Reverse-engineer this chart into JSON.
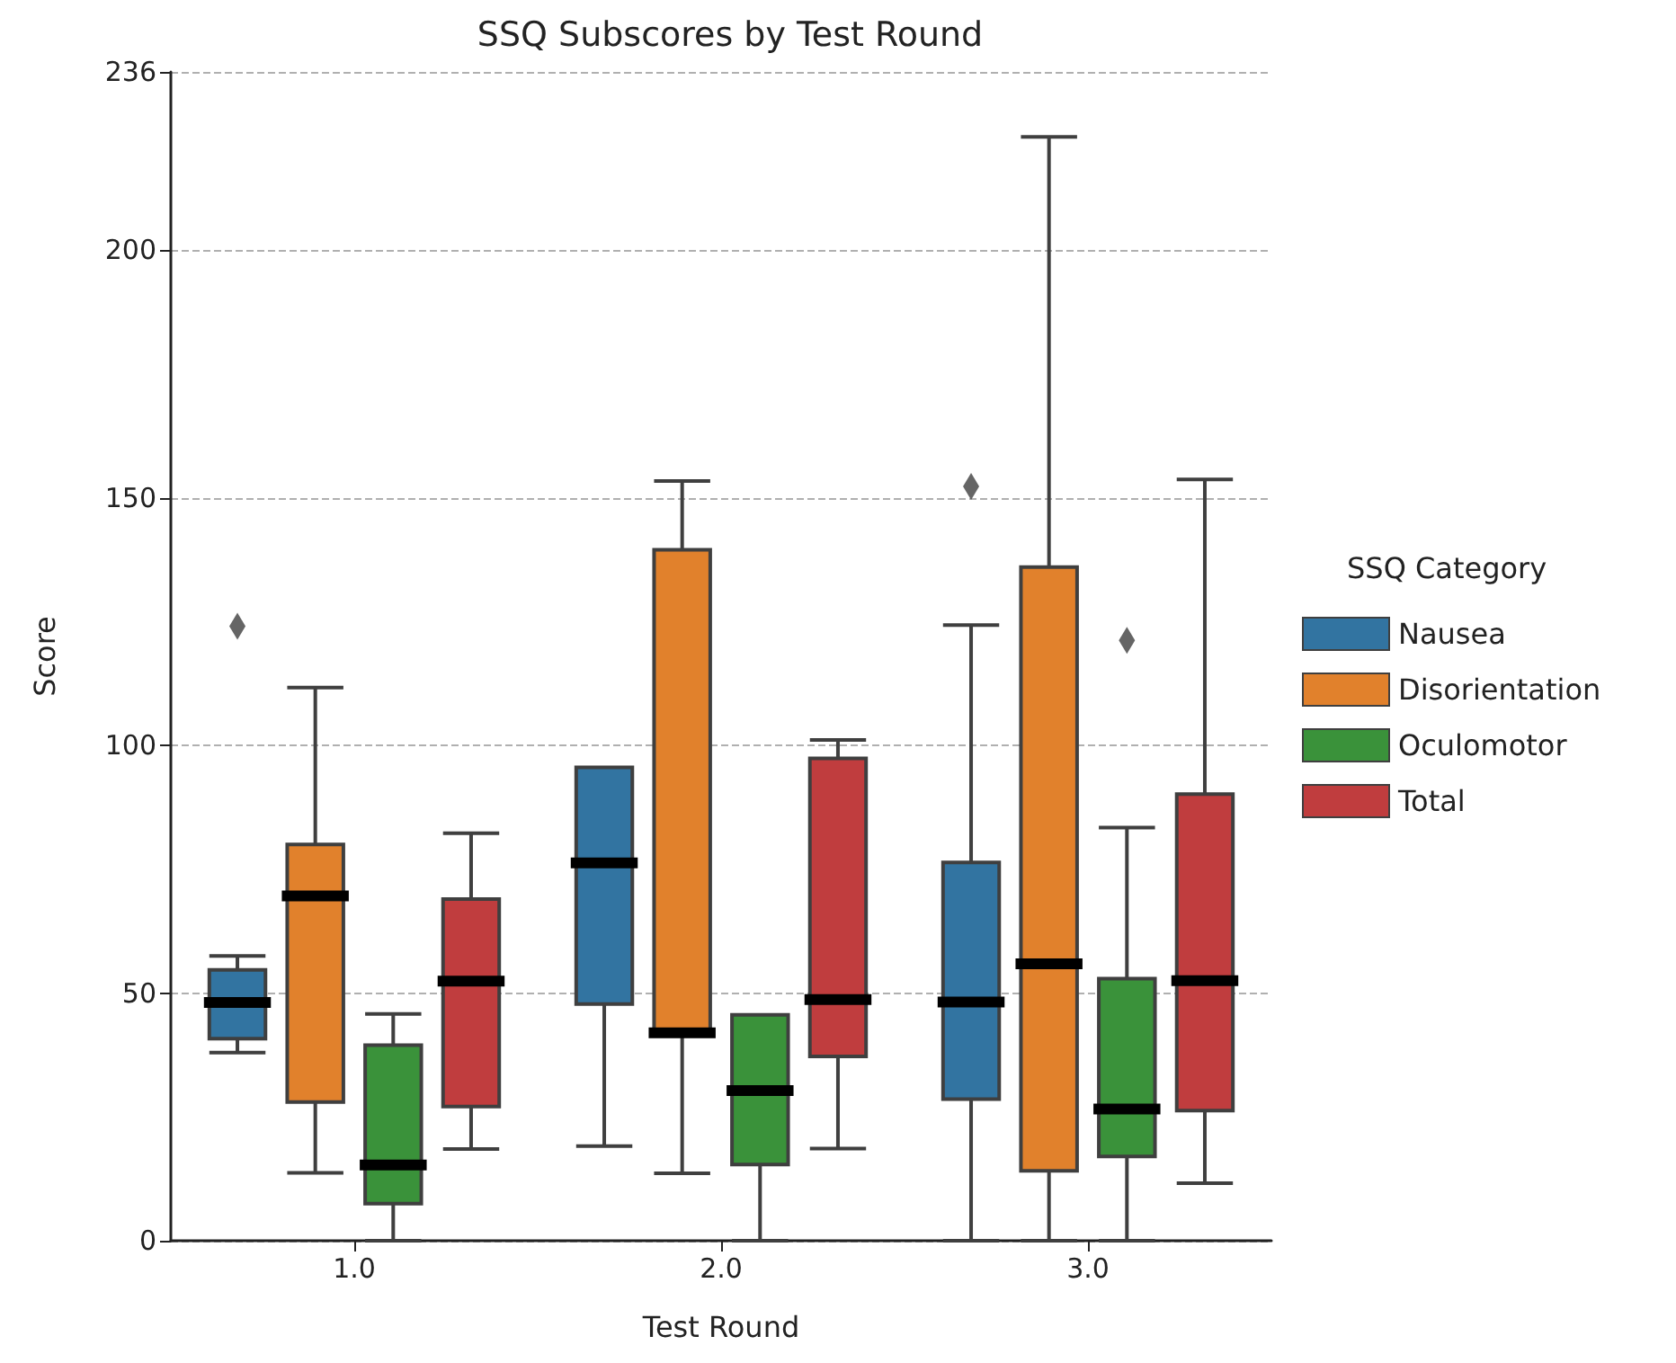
{
  "chart_data": {
    "type": "box",
    "title": "SSQ Subscores by Test Round",
    "xlabel": "Test Round",
    "ylabel": "Score",
    "legend_title": "SSQ Category",
    "categories": [
      "1.0",
      "2.0",
      "3.0"
    ],
    "series": [
      {
        "name": "Nausea",
        "color": "#3274a1",
        "boxes": [
          {
            "low": 38,
            "q1": 40.8,
            "median": 48.1,
            "q3": 54.7,
            "high": 57.5,
            "outliers": [
              124.1
            ]
          },
          {
            "low": 19.1,
            "q1": 47.8,
            "median": 76.3,
            "q3": 95.6,
            "high": 95.6
          },
          {
            "low": 0,
            "q1": 28.6,
            "median": 48.2,
            "q3": 76.4,
            "high": 124.3,
            "outliers": [
              152.3
            ]
          }
        ]
      },
      {
        "name": "Disorientation",
        "color": "#e1812c",
        "boxes": [
          {
            "low": 13.7,
            "q1": 28,
            "median": 69.6,
            "q3": 80,
            "high": 111.7
          },
          {
            "low": 13.6,
            "q1": 42,
            "median": 42,
            "q3": 139.5,
            "high": 153.4
          },
          {
            "low": 0,
            "q1": 14.1,
            "median": 55.9,
            "q3": 136,
            "high": 222.9
          }
        ]
      },
      {
        "name": "Oculomotor",
        "color": "#3a923a",
        "boxes": [
          {
            "low": 0,
            "q1": 7.5,
            "median": 15.3,
            "q3": 39.5,
            "high": 45.8
          },
          {
            "low": 0,
            "q1": 15.4,
            "median": 30.3,
            "q3": 45.6,
            "high": 45.6
          },
          {
            "low": 0,
            "q1": 17,
            "median": 26.6,
            "q3": 52.9,
            "high": 83.4,
            "outliers": [
              121.2
            ]
          }
        ]
      },
      {
        "name": "Total",
        "color": "#c03d3e",
        "boxes": [
          {
            "low": 18.5,
            "q1": 27.1,
            "median": 52.4,
            "q3": 69,
            "high": 82.3
          },
          {
            "low": 18.6,
            "q1": 37.2,
            "median": 48.7,
            "q3": 97.4,
            "high": 101.1
          },
          {
            "low": 11.6,
            "q1": 26.3,
            "median": 52.5,
            "q3": 90.2,
            "high": 153.7
          }
        ]
      }
    ],
    "ylim": [
      0,
      236
    ],
    "yticks": [
      0,
      50,
      100,
      150,
      200,
      236
    ],
    "grid": "y",
    "legend": "right"
  }
}
